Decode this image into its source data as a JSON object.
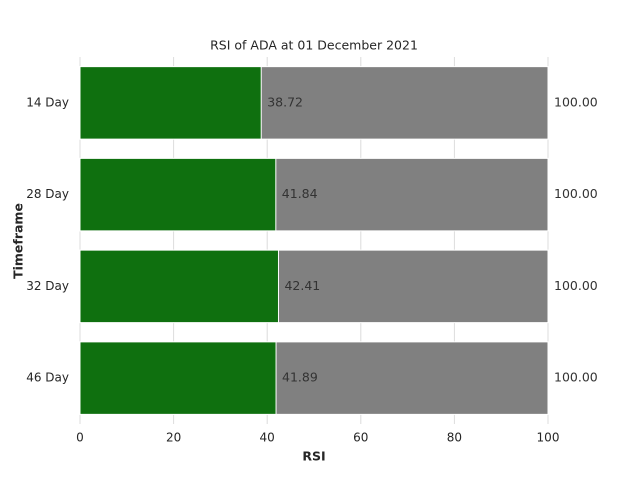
{
  "chart_data": {
    "type": "barh",
    "title": "RSI of ADA at 01 December 2021",
    "xlabel": "RSI",
    "ylabel": "Timeframe",
    "categories": [
      "14 Day",
      "28 Day",
      "32 Day",
      "46 Day"
    ],
    "series": [
      {
        "color": "#808080",
        "values": [
          100,
          100,
          100,
          100
        ],
        "value_labels": [
          "100.00",
          "100.00",
          "100.00",
          "100.00"
        ]
      },
      {
        "color": "#0f700f",
        "values": [
          38.72,
          41.84,
          42.41,
          41.89
        ]
      }
    ],
    "xlim": [
      0,
      100
    ],
    "xticks": [
      0,
      20,
      40,
      60,
      80,
      100
    ],
    "grid": true
  }
}
